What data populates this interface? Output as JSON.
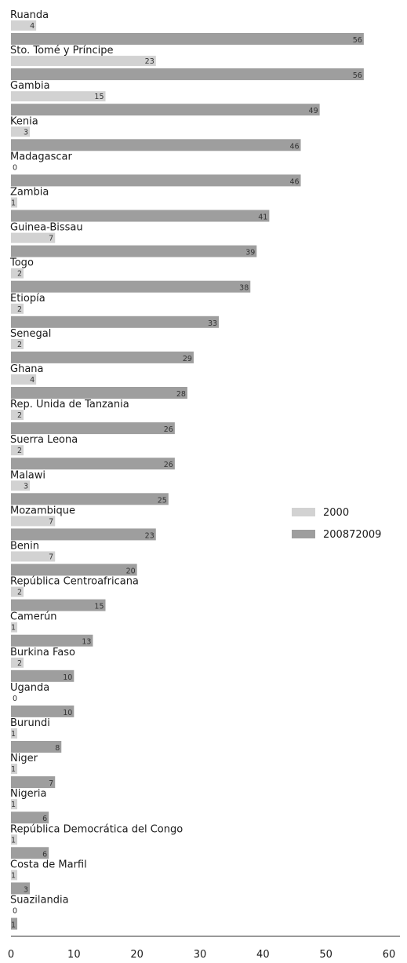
{
  "chart_data": {
    "type": "bar",
    "orientation": "horizontal",
    "categories": [
      "Ruanda",
      "Sto. Tomé y Príncipe",
      "Gambia",
      "Kenia",
      "Madagascar",
      "Zambia",
      "Guinea-Bissau",
      "Togo",
      "Etiopía",
      "Senegal",
      "Ghana",
      "Rep. Unida de Tanzania",
      "Suerra Leona",
      "Malawi",
      "Mozambique",
      "Benin",
      "República Centroafricana",
      "Camerún",
      "Burkina Faso",
      "Uganda",
      "Burundi",
      "Niger",
      "Nigeria",
      "República Democrática del Congo",
      "Costa de Marfil",
      "Suazilandia"
    ],
    "series": [
      {
        "name": "2000",
        "color": "#d2d2d2",
        "values": [
          4,
          23,
          15,
          3,
          0,
          1,
          7,
          2,
          2,
          2,
          4,
          2,
          2,
          3,
          7,
          7,
          2,
          1,
          2,
          0,
          1,
          1,
          1,
          1,
          1,
          0
        ]
      },
      {
        "name": "200872009",
        "color": "#9e9e9e",
        "values": [
          56,
          56,
          49,
          46,
          46,
          41,
          39,
          38,
          33,
          29,
          28,
          26,
          26,
          25,
          23,
          20,
          15,
          13,
          10,
          10,
          8,
          7,
          6,
          6,
          3,
          1
        ]
      }
    ],
    "xlim": [
      0,
      60
    ],
    "xticks": [
      0,
      10,
      20,
      30,
      40,
      50,
      60
    ],
    "title": "",
    "xlabel": "",
    "ylabel": "",
    "legend_position": "middle-right",
    "grid": false
  }
}
